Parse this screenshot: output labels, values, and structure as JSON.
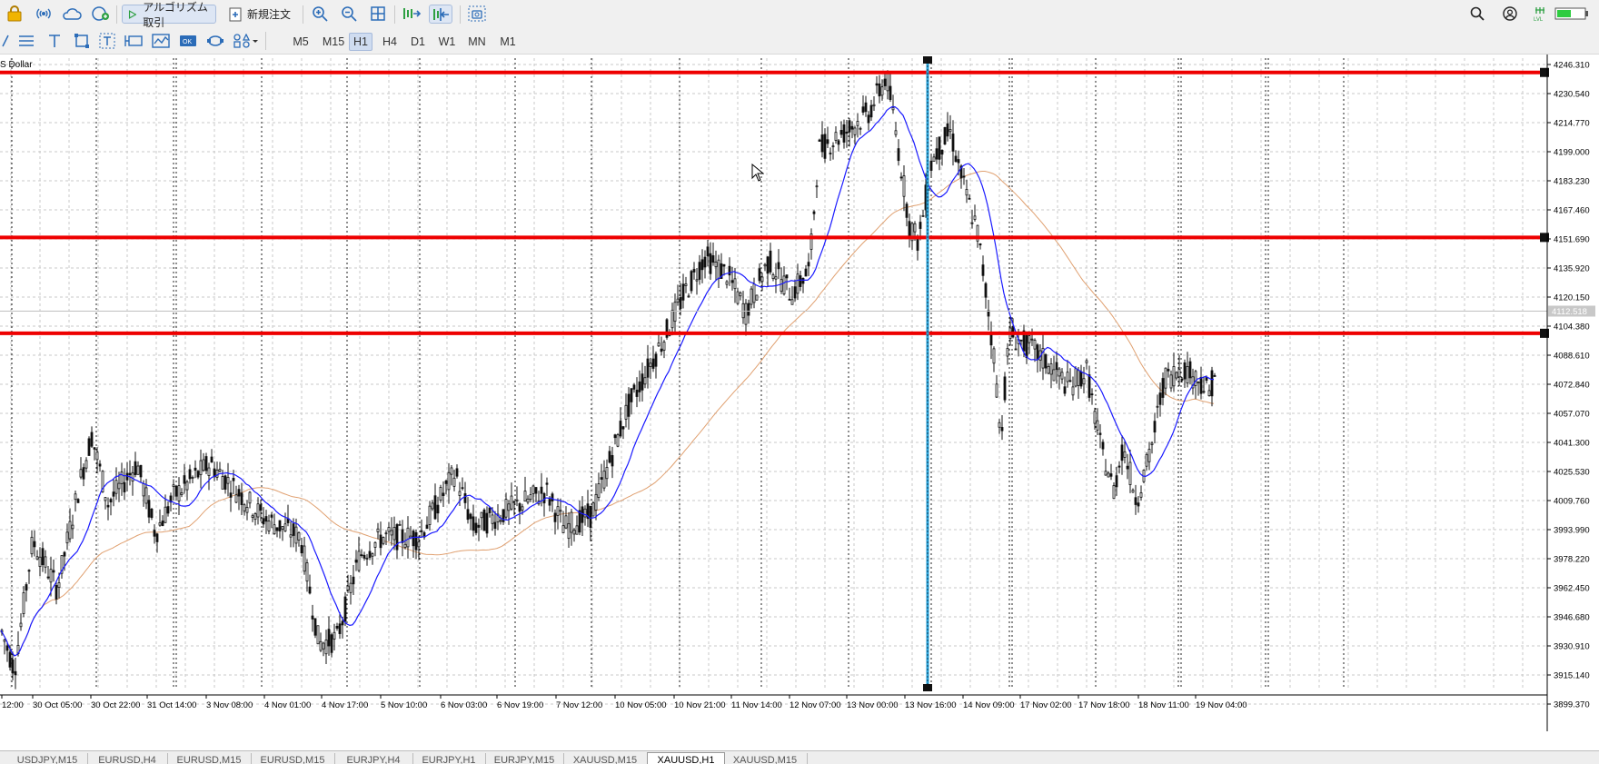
{
  "toolbar": {
    "algo_trading_label": "アルゴリズム取引",
    "new_order_label": "新規注文"
  },
  "timeframes": [
    "M5",
    "M15",
    "H1",
    "H4",
    "D1",
    "W1",
    "MN",
    "M1"
  ],
  "active_timeframe": "H1",
  "chart": {
    "symbol_label": "S Dollar",
    "current_price_label": "4112.518",
    "price_scale": [
      "4246.310",
      "4230.540",
      "4214.770",
      "4199.000",
      "4183.230",
      "4167.460",
      "4151.690",
      "4135.920",
      "4120.150",
      "4104.380",
      "4088.610",
      "4072.840",
      "4057.070",
      "4041.300",
      "4025.530",
      "4009.760",
      "3993.990",
      "3978.220",
      "3962.450",
      "3946.680",
      "3930.910",
      "3915.140",
      "3899.370"
    ],
    "time_labels": [
      "12:00",
      "30 Oct 05:00",
      "30 Oct 22:00",
      "31 Oct 14:00",
      "3 Nov 08:00",
      "4 Nov 01:00",
      "4 Nov 17:00",
      "5 Nov 10:00",
      "6 Nov 03:00",
      "6 Nov 19:00",
      "7 Nov 12:00",
      "10 Nov 05:00",
      "10 Nov 21:00",
      "11 Nov 14:00",
      "12 Nov 07:00",
      "13 Nov 00:00",
      "13 Nov 16:00",
      "14 Nov 09:00",
      "17 Nov 02:00",
      "17 Nov 18:00",
      "18 Nov 11:00",
      "19 Nov 04:00"
    ],
    "horizontal_levels": [
      4242.0,
      4152.5,
      4100.5
    ],
    "colors": {
      "levels": "#ee0000",
      "fast_ma": "#1a1aff",
      "slow_ma": "#e0a070",
      "vertical_marker": "#2aa3d8",
      "candles": "#111111"
    }
  },
  "tabs": [
    "USDJPY,M15",
    "EURUSD,H4",
    "EURUSD,M15",
    "EURUSD,M15",
    "EURJPY,H4",
    "EURJPY,H1",
    "EURJPY,M15",
    "XAUUSD,M15",
    "XAUUSD,H1",
    "XAUUSD,M15"
  ],
  "active_tab": "XAUUSD,H1"
}
